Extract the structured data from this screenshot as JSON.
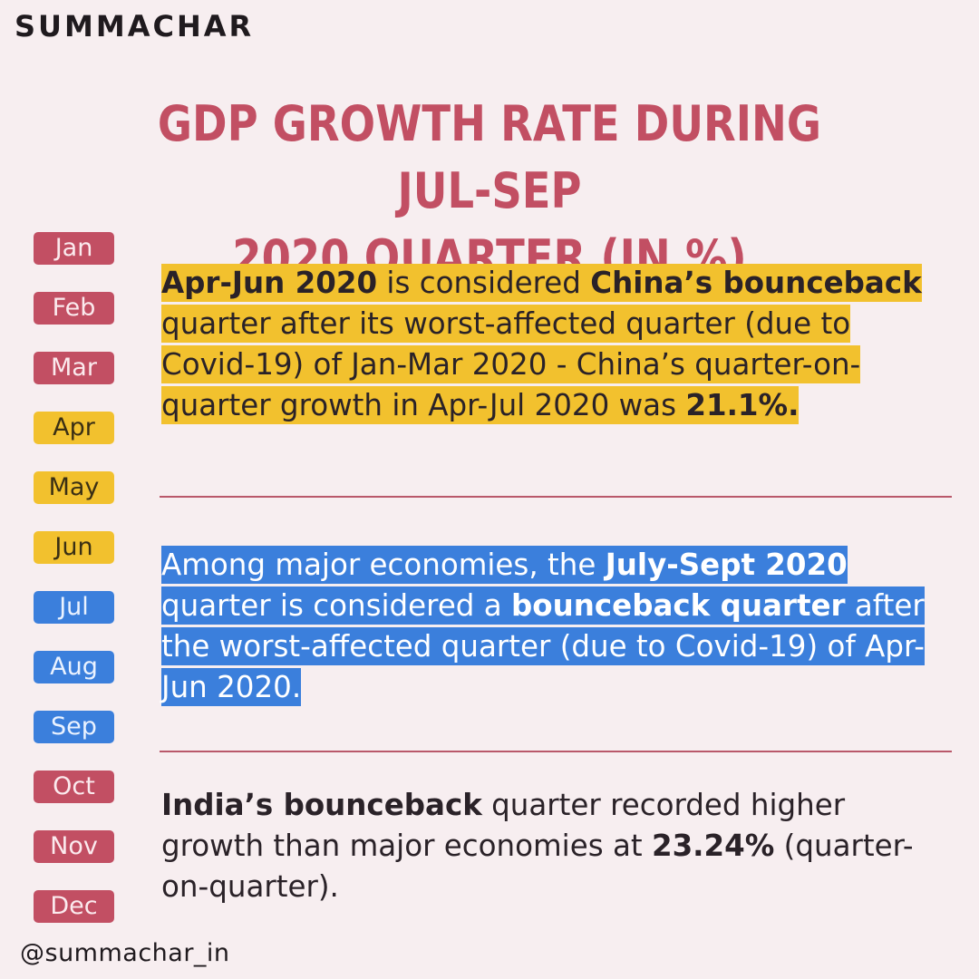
{
  "brand": {
    "logo_text": "SUMMACHAR",
    "handle": "@summachar_in"
  },
  "title": {
    "line1": "GDP GROWTH RATE DURING JUL-SEP",
    "line2": "2020 QUARTER (IN %)"
  },
  "months": [
    {
      "label": "Jan",
      "color": "#c24f63"
    },
    {
      "label": "Feb",
      "color": "#c24f63"
    },
    {
      "label": "Mar",
      "color": "#c24f63"
    },
    {
      "label": "Apr",
      "color": "#f2c12e"
    },
    {
      "label": "May",
      "color": "#f2c12e"
    },
    {
      "label": "Jun",
      "color": "#f2c12e"
    },
    {
      "label": "Jul",
      "color": "#3b7fdc"
    },
    {
      "label": "Aug",
      "color": "#3b7fdc"
    },
    {
      "label": "Sep",
      "color": "#3b7fdc"
    },
    {
      "label": "Oct",
      "color": "#c24f63"
    },
    {
      "label": "Nov",
      "color": "#c24f63"
    },
    {
      "label": "Dec",
      "color": "#c24f63"
    }
  ],
  "paragraph1": {
    "b1": "Apr-Jun 2020",
    "t1": " is considered ",
    "b2": "China’s bounceback",
    "t2": " quarter after its worst-affected quarter (due to Covid-19) of Jan-Mar 2020 - China’s quarter-on-quarter growth in Apr-Jul 2020 was ",
    "b3": "21.1%."
  },
  "paragraph2": {
    "t1": "Among major economies, the ",
    "b1": "July-Sept 2020",
    "t2": " quarter is considered a ",
    "b2": "bounceback quarter",
    "t3": " after the worst-affected quarter (due to Covid-19) of Apr-Jun 2020."
  },
  "paragraph3": {
    "b1": "India’s bounceback",
    "t1": " quarter recorded higher growth than major economies at ",
    "b2": "23.24%",
    "t2": " (quarter-on-quarter)."
  },
  "colors": {
    "background": "#f7eef0",
    "title_red": "#c24f63",
    "highlight_yellow": "#f2c12e",
    "highlight_blue": "#3b7fdc"
  }
}
